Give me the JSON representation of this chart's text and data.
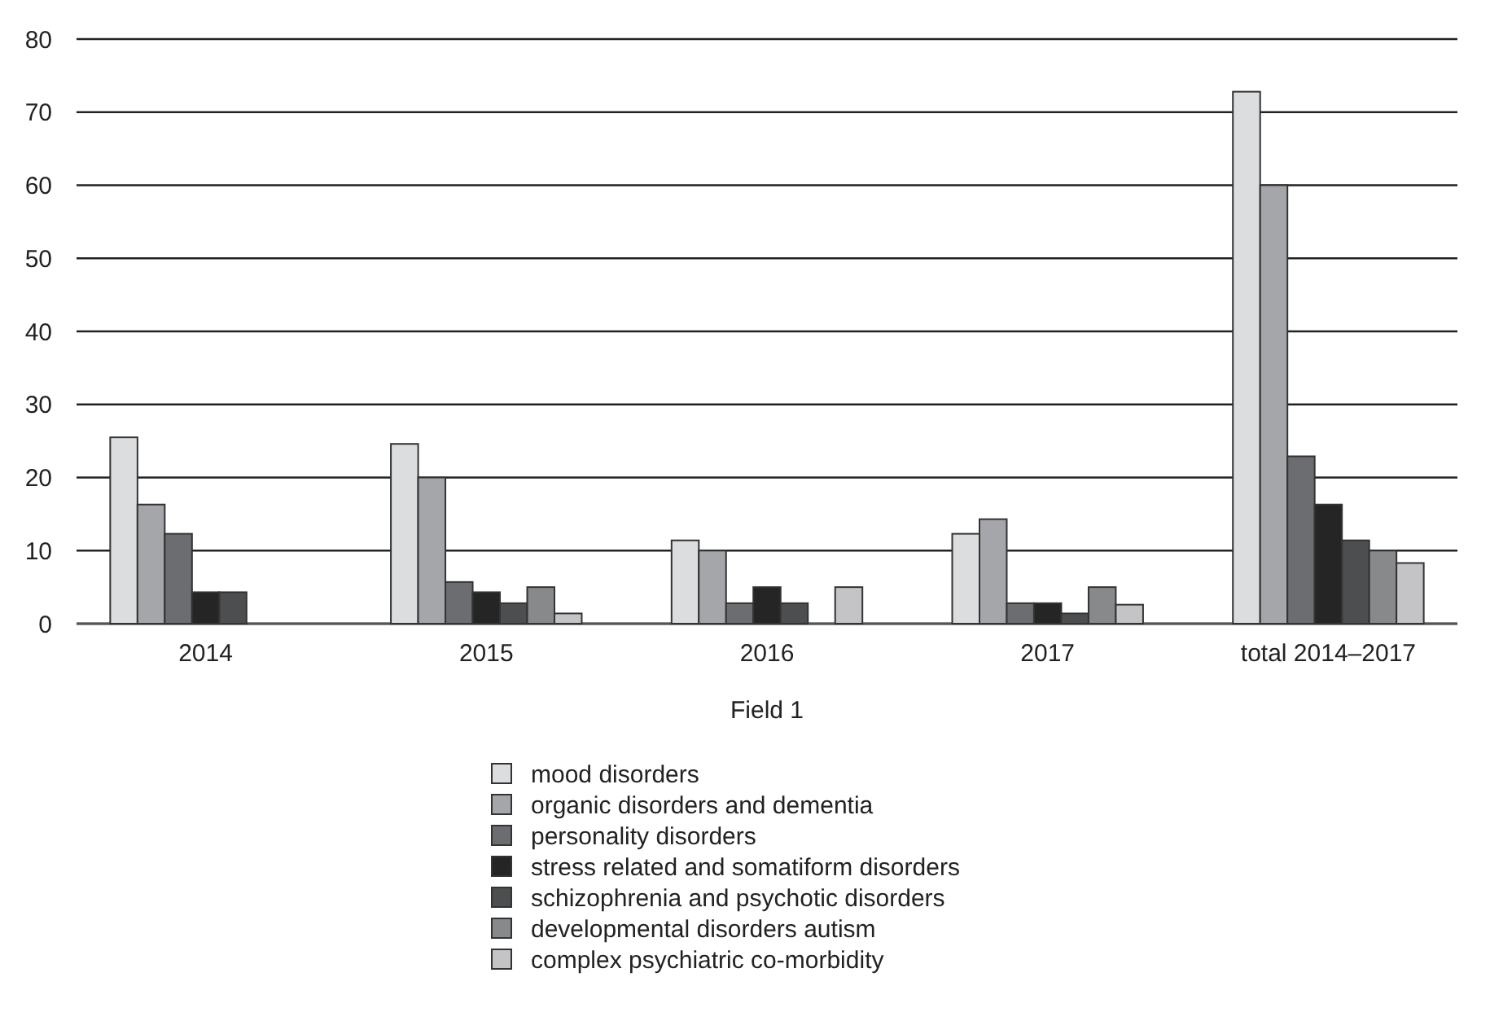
{
  "chart_data": {
    "type": "bar",
    "xlabel": "Field 1",
    "categories": [
      "2014",
      "2015",
      "2016",
      "2017",
      "total 2014–2017"
    ],
    "series": [
      {
        "name": "mood disorders",
        "color": "#dcdddf",
        "values": [
          25.5,
          24.6,
          11.4,
          12.3,
          72.8
        ]
      },
      {
        "name": "organic disorders and dementia",
        "color": "#a5a6a9",
        "values": [
          16.3,
          20,
          10,
          14.3,
          60
        ]
      },
      {
        "name": "personality disorders",
        "color": "#6c6d70",
        "values": [
          12.3,
          5.7,
          2.8,
          2.8,
          22.9
        ]
      },
      {
        "name": "stress related and somatiform disorders",
        "color": "#262526",
        "values": [
          4.3,
          4.3,
          5,
          2.8,
          16.3
        ]
      },
      {
        "name": "schizophrenia and psychotic disorders",
        "color": "#4d4e4f",
        "values": [
          4.3,
          2.8,
          2.8,
          1.4,
          11.4
        ]
      },
      {
        "name": "developmental disorders autism",
        "color": "#88898b",
        "values": [
          0,
          5,
          0,
          5,
          10
        ]
      },
      {
        "name": "complex psychiatric co-morbidity",
        "color": "#c4c4c6",
        "values": [
          0,
          1.4,
          5,
          2.6,
          8.3
        ]
      }
    ],
    "ylim": [
      0,
      80
    ],
    "yticks": [
      0,
      10,
      20,
      30,
      40,
      50,
      60,
      70,
      80
    ],
    "grid": "y",
    "legend": "bottom"
  }
}
